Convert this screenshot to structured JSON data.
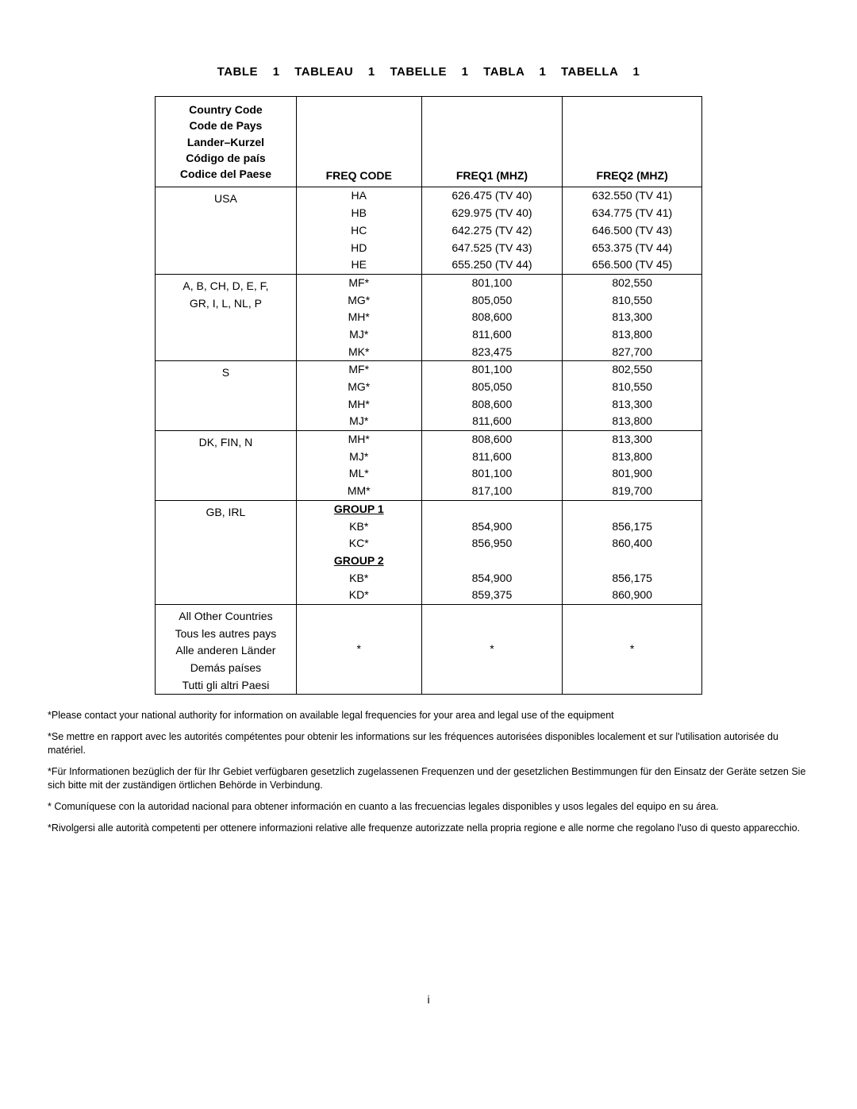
{
  "colors": {
    "background": "#ffffff",
    "text": "#000000",
    "border": "#000000"
  },
  "title_parts": [
    "TABLE 1",
    "TABLEAU 1",
    "TABELLE 1",
    "TABLA 1",
    "TABELLA 1"
  ],
  "header": {
    "country_lines": [
      "Country Code",
      "Code de Pays",
      "Lander–Kurzel",
      "Código de país",
      "Codice del Paese"
    ],
    "freq_code": "FREQ CODE",
    "freq1": "FREQ1 (MHZ)",
    "freq2": "FREQ2 (MHZ)"
  },
  "groups": [
    {
      "country_lines": [
        "USA"
      ],
      "rows": [
        {
          "code": "HA",
          "f1": "626.475 (TV 40)",
          "f2": "632.550 (TV 41)"
        },
        {
          "code": "HB",
          "f1": "629.975 (TV 40)",
          "f2": "634.775 (TV 41)"
        },
        {
          "code": "HC",
          "f1": "642.275 (TV 42)",
          "f2": "646.500 (TV 43)"
        },
        {
          "code": "HD",
          "f1": "647.525 (TV 43)",
          "f2": "653.375 (TV 44)"
        },
        {
          "code": "HE",
          "f1": "655.250 (TV 44)",
          "f2": "656.500 (TV 45)"
        }
      ]
    },
    {
      "country_lines": [
        "A, B, CH, D, E, F,",
        "GR, I, L, NL, P"
      ],
      "rows": [
        {
          "code": "MF*",
          "f1": "801,100",
          "f2": "802,550"
        },
        {
          "code": "MG*",
          "f1": "805,050",
          "f2": "810,550"
        },
        {
          "code": "MH*",
          "f1": "808,600",
          "f2": "813,300"
        },
        {
          "code": "MJ*",
          "f1": "811,600",
          "f2": "813,800"
        },
        {
          "code": "MK*",
          "f1": "823,475",
          "f2": "827,700"
        }
      ]
    },
    {
      "country_lines": [
        "S"
      ],
      "rows": [
        {
          "code": "MF*",
          "f1": "801,100",
          "f2": "802,550"
        },
        {
          "code": "MG*",
          "f1": "805,050",
          "f2": "810,550"
        },
        {
          "code": "MH*",
          "f1": "808,600",
          "f2": "813,300"
        },
        {
          "code": "MJ*",
          "f1": "811,600",
          "f2": "813,800"
        }
      ]
    },
    {
      "country_lines": [
        "DK, FIN, N"
      ],
      "rows": [
        {
          "code": "MH*",
          "f1": "808,600",
          "f2": "813,300"
        },
        {
          "code": "MJ*",
          "f1": "811,600",
          "f2": "813,800"
        },
        {
          "code": "ML*",
          "f1": "801,100",
          "f2": "801,900"
        },
        {
          "code": "MM*",
          "f1": "817,100",
          "f2": "819,700"
        }
      ]
    },
    {
      "country_lines": [
        "GB, IRL"
      ],
      "rows": [
        {
          "code": "GROUP 1",
          "is_group": true,
          "f1": "",
          "f2": ""
        },
        {
          "code": "KB*",
          "f1": "854,900",
          "f2": "856,175"
        },
        {
          "code": "KC*",
          "f1": "856,950",
          "f2": "860,400"
        },
        {
          "code": "GROUP 2",
          "is_group": true,
          "f1": "",
          "f2": ""
        },
        {
          "code": "KB*",
          "f1": "854,900",
          "f2": "856,175"
        },
        {
          "code": "KD*",
          "f1": "859,375",
          "f2": "860,900"
        }
      ]
    },
    {
      "country_lines": [
        "All Other Countries",
        "Tous les autres pays",
        "Alle anderen Länder",
        "Demás países",
        "Tutti gli altri Paesi"
      ],
      "rows": [
        {
          "code": "*",
          "f1": "*",
          "f2": "*"
        }
      ],
      "center_vertical": true
    }
  ],
  "footnotes": [
    "*Please contact your national authority for information on available legal frequencies for your area and legal use of the equipment",
    "*Se mettre en rapport avec les autorités compétentes pour obtenir les informations sur les fréquences autorisées disponibles localement et sur l'utilisation autorisée du matériel.",
    "*Für Informationen bezüglich der für Ihr Gebiet verfügbaren gesetzlich zugelassenen Frequenzen und der gesetzlichen Bestimmungen für den Einsatz der Geräte setzen Sie sich bitte mit der zuständigen örtlichen Behörde in Verbindung.",
    "* Comuníquese con la autoridad nacional para obtener información en cuanto a las frecuencias legales disponibles y usos legales del equipo en su área.",
    "*Rivolgersi alle autorità competenti per ottenere informazioni relative alle frequenze autorizzate nella propria regione e alle norme che regolano l'uso di questo apparecchio."
  ],
  "page_number": "i"
}
